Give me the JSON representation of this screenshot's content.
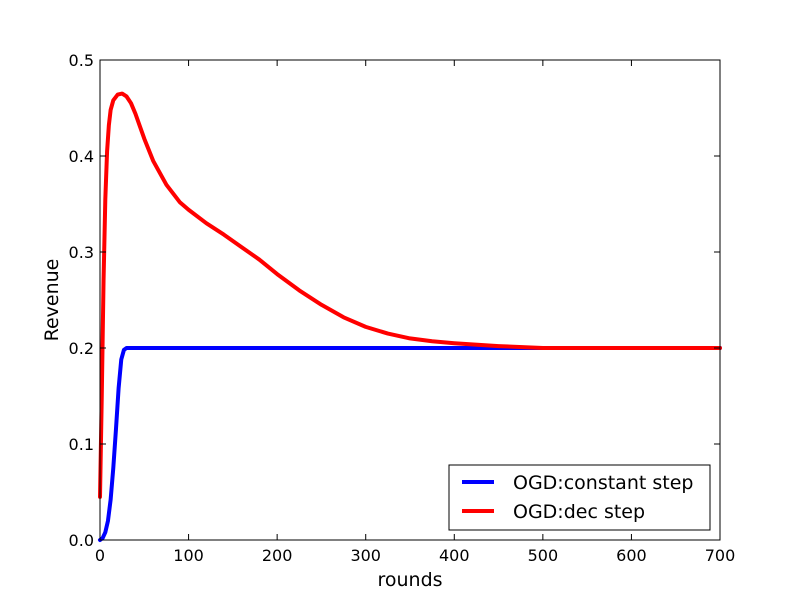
{
  "chart_data": {
    "type": "line",
    "xlabel": "rounds",
    "ylabel": "Revenue",
    "xlim": [
      0,
      700
    ],
    "ylim": [
      0.0,
      0.5
    ],
    "x_ticks": [
      "0",
      "100",
      "200",
      "300",
      "400",
      "500",
      "600",
      "700"
    ],
    "y_ticks": [
      "0.0",
      "0.1",
      "0.2",
      "0.3",
      "0.4",
      "0.5"
    ],
    "grid": false,
    "legend_position": "bottom-right",
    "series": [
      {
        "name": "OGD:constant step",
        "color": "#0000ff",
        "x": [
          0,
          3,
          6,
          9,
          12,
          15,
          18,
          21,
          24,
          27,
          30,
          35,
          40,
          60,
          100,
          200,
          300,
          400,
          500,
          600,
          700
        ],
        "y": [
          0.0,
          0.002,
          0.008,
          0.02,
          0.042,
          0.075,
          0.115,
          0.158,
          0.188,
          0.198,
          0.2,
          0.2,
          0.2,
          0.2,
          0.2,
          0.2,
          0.2,
          0.2,
          0.2,
          0.2,
          0.2
        ]
      },
      {
        "name": "OGD:dec step",
        "color": "#ff0000",
        "x": [
          0,
          2,
          4,
          6,
          8,
          10,
          12,
          15,
          20,
          25,
          30,
          35,
          40,
          50,
          60,
          75,
          90,
          100,
          120,
          140,
          160,
          180,
          200,
          225,
          250,
          275,
          300,
          325,
          350,
          375,
          400,
          450,
          500,
          550,
          600,
          650,
          700
        ],
        "y": [
          0.045,
          0.15,
          0.27,
          0.355,
          0.405,
          0.432,
          0.448,
          0.458,
          0.464,
          0.465,
          0.462,
          0.455,
          0.444,
          0.418,
          0.395,
          0.37,
          0.352,
          0.344,
          0.33,
          0.318,
          0.305,
          0.292,
          0.277,
          0.26,
          0.245,
          0.232,
          0.222,
          0.215,
          0.21,
          0.207,
          0.205,
          0.202,
          0.2,
          0.2,
          0.2,
          0.2,
          0.2
        ]
      }
    ]
  }
}
